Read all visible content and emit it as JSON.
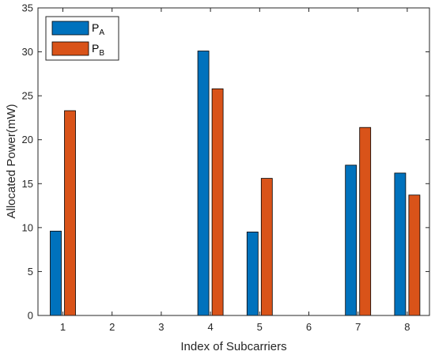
{
  "chart_data": {
    "type": "bar",
    "categories": [
      "1",
      "2",
      "3",
      "4",
      "5",
      "6",
      "7",
      "8"
    ],
    "series": [
      {
        "name": "P_A",
        "label_main": "P",
        "label_sub": "A",
        "color": "#0072BD",
        "values": [
          9.6,
          0,
          0,
          30.1,
          9.5,
          0,
          17.1,
          16.2
        ]
      },
      {
        "name": "P_B",
        "label_main": "P",
        "label_sub": "B",
        "color": "#D95319",
        "values": [
          23.3,
          0,
          0,
          25.8,
          15.6,
          0,
          21.4,
          13.7
        ]
      }
    ],
    "xlabel": "Index of Subcarriers",
    "ylabel": "Allocated Power(mW)",
    "ylim": [
      0,
      35
    ],
    "yticks": [
      "0",
      "5",
      "10",
      "15",
      "20",
      "25",
      "30",
      "35"
    ],
    "grid": false,
    "legend_position": "top-left"
  }
}
